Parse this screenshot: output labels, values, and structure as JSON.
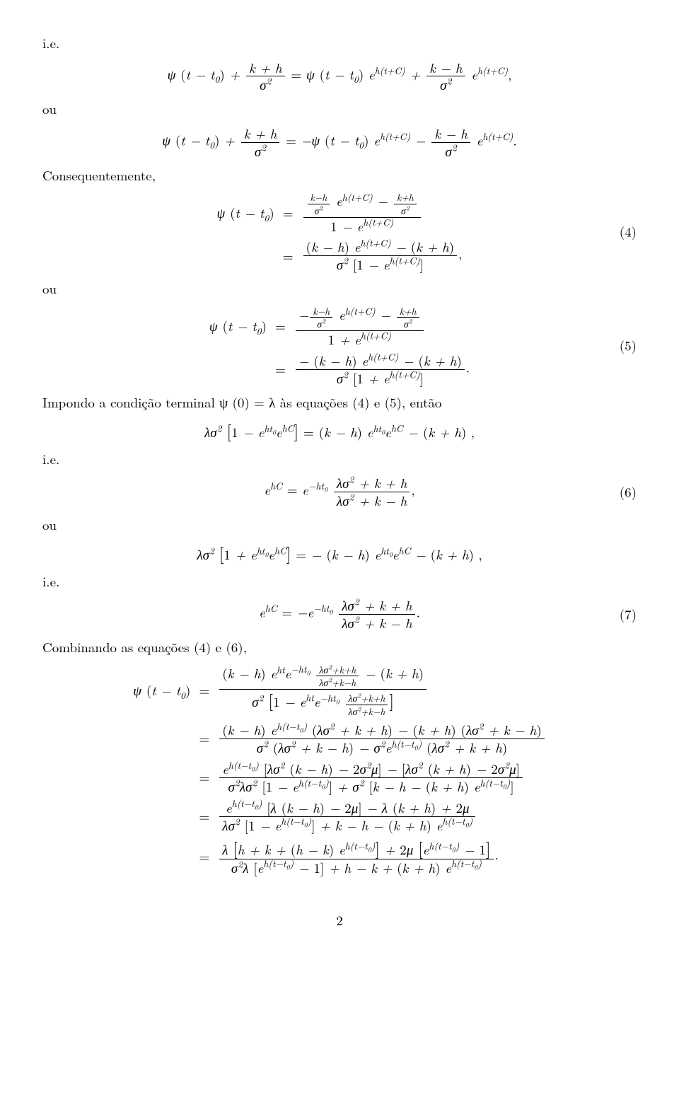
{
  "text": {
    "ie1": "i.e.",
    "ou1": "ou",
    "ou2": "ou",
    "conseq": "Consequentemente,",
    "ou3": "ou",
    "impondo": "Impondo a condição terminal ψ (0) = λ às equações (4) e (5), então",
    "ie2": "i.e.",
    "ou4": "ou",
    "ie3": "i.e.",
    "combinando": "Combinando as equações (4) e (6),",
    "page": "2"
  },
  "eqnum": {
    "n4": "(4)",
    "n5": "(5)",
    "n6": "(6)",
    "n7": "(7)"
  },
  "colors": {
    "fg": "#000000",
    "bg": "#ffffff"
  },
  "fontsize_pt": 12
}
